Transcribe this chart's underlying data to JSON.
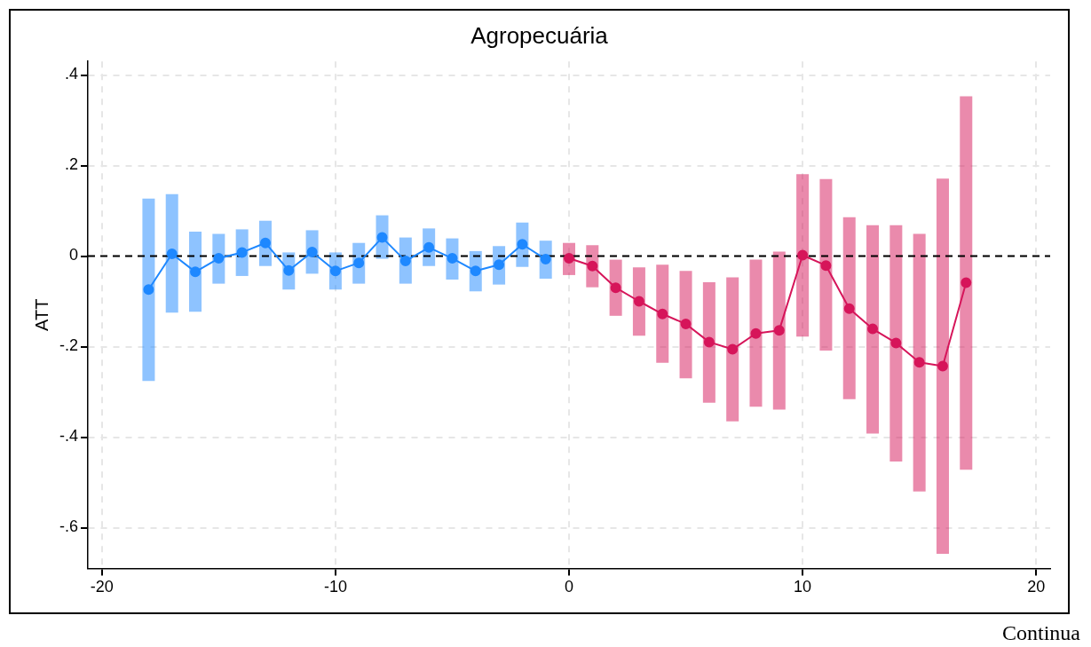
{
  "chart_data": {
    "type": "line",
    "title": "Agropecuária",
    "ylabel": "ATT",
    "xlim": [
      -20.6,
      20.6
    ],
    "xticks": [
      -20,
      -10,
      0,
      10,
      20
    ],
    "ylim": [
      -0.69,
      0.43
    ],
    "yticks": [
      {
        "value": 0.4,
        "label": ".4"
      },
      {
        "value": 0.2,
        "label": ".2"
      },
      {
        "value": 0,
        "label": "0"
      },
      {
        "value": -0.2,
        "label": "-.2"
      },
      {
        "value": -0.4,
        "label": "-.4"
      },
      {
        "value": -0.6,
        "label": "-.6"
      }
    ],
    "grid": true,
    "legend": false,
    "marker": "circle",
    "line_style": "solid",
    "ref_lines": [
      {
        "axis": "y",
        "value": 0,
        "color": "#000000",
        "line_style": "dashed"
      }
    ],
    "annotations": [
      "Continua"
    ],
    "series": [
      {
        "color": "#1e88ff",
        "x": [
          -18,
          -17,
          -16,
          -15,
          -14,
          -13,
          -12,
          -11,
          -10,
          -9,
          -8,
          -7,
          -6,
          -5,
          -4,
          -3,
          -2,
          -1
        ],
        "values": [
          -0.074,
          0.005,
          -0.035,
          -0.005,
          0.008,
          0.029,
          -0.032,
          0.009,
          -0.033,
          -0.015,
          0.041,
          -0.011,
          0.019,
          -0.005,
          -0.033,
          -0.019,
          0.026,
          -0.007
        ],
        "errors": [
          [
            -0.276,
            0.127
          ],
          [
            -0.125,
            0.137
          ],
          [
            -0.123,
            0.054
          ],
          [
            -0.061,
            0.049
          ],
          [
            -0.044,
            0.059
          ],
          [
            -0.022,
            0.078
          ],
          [
            -0.074,
            0.008
          ],
          [
            -0.039,
            0.057
          ],
          [
            -0.074,
            0.008
          ],
          [
            -0.061,
            0.029
          ],
          [
            -0.006,
            0.09
          ],
          [
            -0.061,
            0.041
          ],
          [
            -0.022,
            0.061
          ],
          [
            -0.052,
            0.039
          ],
          [
            -0.078,
            0.011
          ],
          [
            -0.063,
            0.022
          ],
          [
            -0.024,
            0.074
          ],
          [
            -0.05,
            0.034
          ]
        ]
      },
      {
        "color": "#d6155a",
        "x": [
          0,
          1,
          2,
          3,
          4,
          5,
          6,
          7,
          8,
          9,
          10,
          11,
          12,
          13,
          14,
          15,
          16,
          17
        ],
        "values": [
          -0.005,
          -0.022,
          -0.07,
          -0.1,
          -0.128,
          -0.15,
          -0.19,
          -0.206,
          -0.171,
          -0.164,
          0.002,
          -0.021,
          -0.116,
          -0.161,
          -0.192,
          -0.235,
          -0.243,
          -0.059
        ],
        "errors": [
          [
            -0.042,
            0.029
          ],
          [
            -0.069,
            0.024
          ],
          [
            -0.132,
            -0.008
          ],
          [
            -0.176,
            -0.025
          ],
          [
            -0.236,
            -0.019
          ],
          [
            -0.27,
            -0.033
          ],
          [
            -0.324,
            -0.058
          ],
          [
            -0.365,
            -0.047
          ],
          [
            -0.333,
            -0.008
          ],
          [
            -0.339,
            0.01
          ],
          [
            -0.178,
            0.181
          ],
          [
            -0.209,
            0.17
          ],
          [
            -0.316,
            0.086
          ],
          [
            -0.392,
            0.068
          ],
          [
            -0.454,
            0.068
          ],
          [
            -0.52,
            0.049
          ],
          [
            -0.658,
            0.171
          ],
          [
            -0.472,
            0.353
          ]
        ]
      }
    ]
  }
}
